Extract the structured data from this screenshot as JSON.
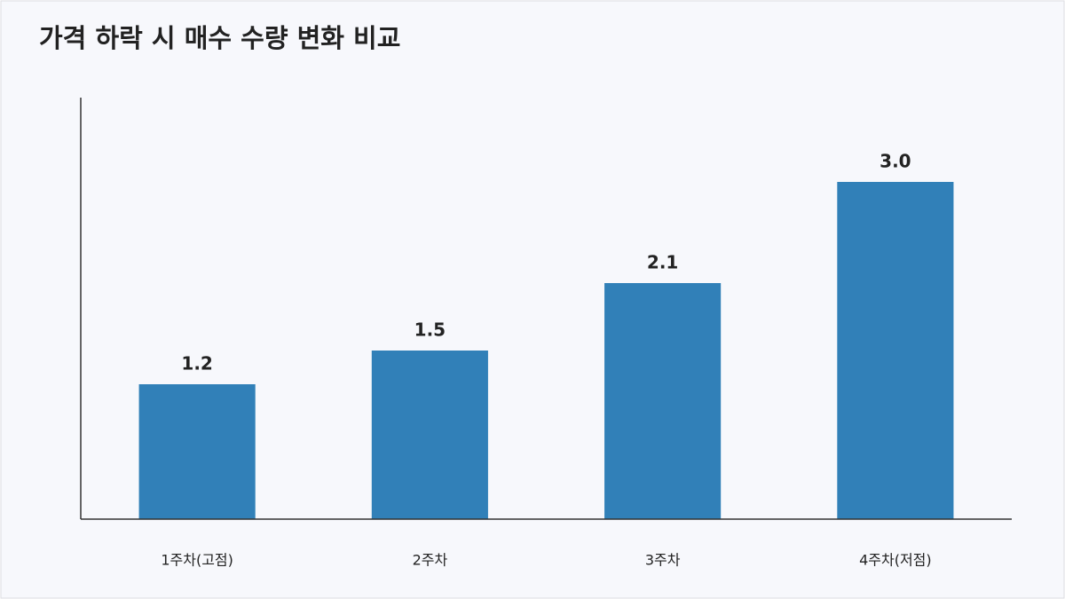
{
  "chart_data": {
    "type": "bar",
    "title": "가격 하락 시 매수 수량 변화 비교",
    "categories": [
      "1주차(고점)",
      "2주차",
      "3주차",
      "4주차(저점)"
    ],
    "values": [
      1.2,
      1.5,
      2.1,
      3.0
    ],
    "value_labels": [
      "1.2",
      "1.5",
      "2.1",
      "3.0"
    ],
    "color": "#3180b8",
    "ylim": [
      0,
      3.75
    ]
  }
}
